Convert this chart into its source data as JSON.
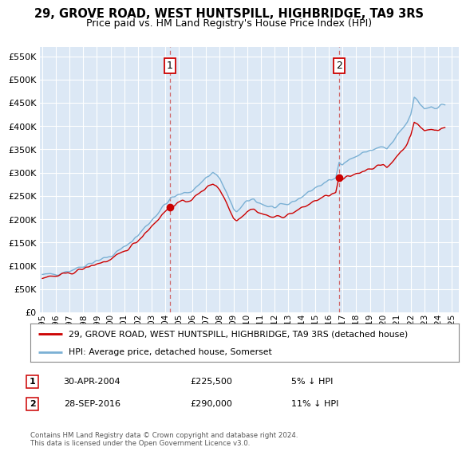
{
  "title": "29, GROVE ROAD, WEST HUNTSPILL, HIGHBRIDGE, TA9 3RS",
  "subtitle": "Price paid vs. HM Land Registry's House Price Index (HPI)",
  "ylim": [
    0,
    570000
  ],
  "xlim_start": 1995.0,
  "xlim_end": 2025.5,
  "bg_color": "#dce8f5",
  "plot_bg": "#dce8f5",
  "grid_color": "#ffffff",
  "sale1_x": 2004.33,
  "sale1_y": 225500,
  "sale1_label": "1",
  "sale1_date": "30-APR-2004",
  "sale1_price": "£225,500",
  "sale1_hpi": "5% ↓ HPI",
  "sale2_x": 2016.75,
  "sale2_y": 290000,
  "sale2_label": "2",
  "sale2_date": "28-SEP-2016",
  "sale2_price": "£290,000",
  "sale2_hpi": "11% ↓ HPI",
  "line1_label": "29, GROVE ROAD, WEST HUNTSPILL, HIGHBRIDGE, TA9 3RS (detached house)",
  "line2_label": "HPI: Average price, detached house, Somerset",
  "line1_color": "#cc0000",
  "line2_color": "#7ab0d4",
  "dashed_color": "#cc4444",
  "footnote": "Contains HM Land Registry data © Crown copyright and database right 2024.\nThis data is licensed under the Open Government Licence v3.0."
}
